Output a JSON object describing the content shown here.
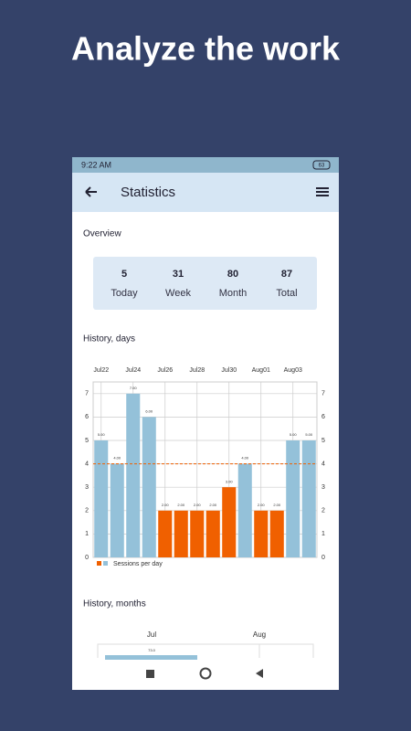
{
  "headline": "Analyze the work",
  "status_bar": {
    "time": "9:22 AM",
    "battery": "63"
  },
  "app_bar": {
    "title": "Statistics"
  },
  "overview": {
    "title": "Overview",
    "stats": [
      {
        "value": 5,
        "label": "Today"
      },
      {
        "value": 31,
        "label": "Week"
      },
      {
        "value": 80,
        "label": "Month"
      },
      {
        "value": 87,
        "label": "Total"
      }
    ]
  },
  "history_days": {
    "title": "History, days",
    "chart_data": {
      "type": "bar",
      "categories": [
        "Jul22",
        null,
        "Jul24",
        null,
        "Jul26",
        null,
        "Jul28",
        null,
        "Jul30",
        null,
        "Aug01",
        null,
        "Aug03",
        null
      ],
      "values": [
        5,
        4,
        7,
        6,
        2,
        2,
        2,
        2,
        3,
        4,
        2,
        2,
        5,
        5
      ],
      "value_labels": [
        "5.00",
        "4.00",
        "7.00",
        "6.00",
        "2.00",
        "2.00",
        "2.00",
        "2.00",
        "3.00",
        "4.00",
        "2.00",
        "2.00",
        "5.00",
        "5.00"
      ],
      "colors": [
        "#94c1d9",
        "#94c1d9",
        "#94c1d9",
        "#94c1d9",
        "#f06000",
        "#f06000",
        "#f06000",
        "#f06000",
        "#f06000",
        "#94c1d9",
        "#f06000",
        "#f06000",
        "#94c1d9",
        "#94c1d9"
      ],
      "ylim": [
        0,
        7.5
      ],
      "yticks": [
        0,
        1,
        2,
        3,
        4,
        5,
        6,
        7
      ],
      "grid": true,
      "average": 4,
      "average_color": "#f06000",
      "legend": "Sessions per day",
      "legend_colors": [
        "#f06000",
        "#94c1d9"
      ]
    }
  },
  "history_months": {
    "title": "History, months",
    "columns": [
      "Jul",
      "Aug"
    ],
    "bar": {
      "value": 73,
      "label": "73.0",
      "color": "#94c1d9"
    }
  }
}
